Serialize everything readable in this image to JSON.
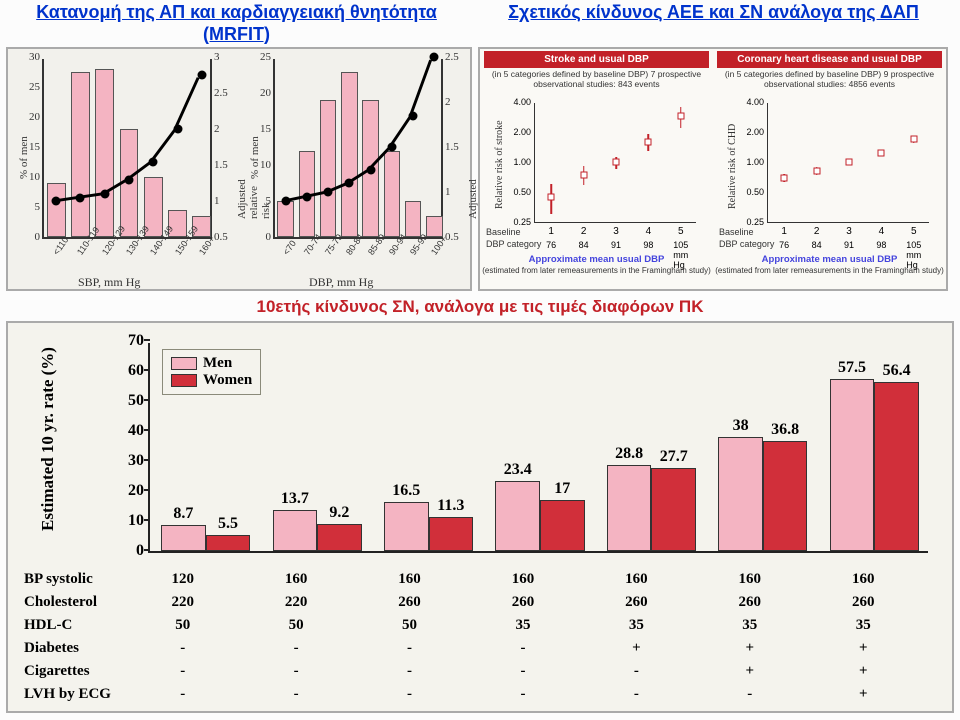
{
  "titles": {
    "left": "Κατανομή της ΑΠ και καρδιαγγειακή θνητότητα (MRFIT)",
    "right": "Σχετικός κίνδυνος ΑΕΕ και ΣΝ ανάλογα της ΔΑΠ"
  },
  "mrfit": {
    "background": "#f2f1ec",
    "bar_color": "#f4b4c2",
    "curve_color": "#000000",
    "y_left_label": "% of men",
    "y_right_label": "Adjusted relative risk",
    "sbp": {
      "xlabel": "SBP, mm Hg",
      "cats": [
        "<110",
        "110-119",
        "120-129",
        "130-139",
        "140-149",
        "150-159",
        "160+"
      ],
      "bars": [
        9,
        27.5,
        28,
        18,
        10,
        4.5,
        3.5
      ],
      "curve": [
        1.0,
        1.05,
        1.1,
        1.3,
        1.55,
        2.0,
        2.75
      ],
      "yl_ticks": [
        0,
        5,
        10,
        15,
        20,
        25,
        30
      ],
      "yr_ticks": [
        0.5,
        1,
        1.5,
        2,
        2.5,
        3
      ],
      "yl_max": 30,
      "yr_min": 0.5,
      "yr_max": 3
    },
    "dbp": {
      "xlabel": "DBP, mm Hg",
      "cats": [
        "<70",
        "70-74",
        "75-79",
        "80-84",
        "85-89",
        "90-94",
        "95-99",
        "100+"
      ],
      "bars": [
        5,
        12,
        19,
        23,
        19,
        12,
        5,
        3
      ],
      "curve": [
        0.9,
        0.95,
        1.0,
        1.1,
        1.25,
        1.5,
        1.85,
        2.5
      ],
      "yl_ticks": [
        0,
        5,
        10,
        15,
        20,
        25
      ],
      "yr_ticks": [
        0.5,
        1,
        1.5,
        2,
        2.5
      ],
      "yl_max": 25,
      "yr_min": 0.5,
      "yr_max": 2.5
    }
  },
  "rr": {
    "background": "#faf9f5",
    "marker_border": "#c22128",
    "y_ticks": [
      0.25,
      0.5,
      1.0,
      2.0,
      4.0
    ],
    "x_cats": [
      "1",
      "2",
      "3",
      "4",
      "5"
    ],
    "x_mmhg": [
      "76",
      "84",
      "91",
      "98",
      "105 mm Hg"
    ],
    "baseline_line1": "Baseline",
    "baseline_line2": "DBP category",
    "foot_title": "Approximate mean usual DBP",
    "foot_sub": "(estimated from later remeasurements in the Framingham study)",
    "stroke": {
      "title": "Stroke and usual DBP",
      "sub": "(in 5 categories defined by baseline DBP) 7 prospective observational studies: 843 events",
      "ylab": "Relative risk of stroke",
      "pts": [
        0.45,
        0.75,
        1.0,
        1.6,
        2.9
      ],
      "err": [
        0.15,
        0.16,
        0.14,
        0.3,
        0.7
      ]
    },
    "chd": {
      "title": "Coronary heart disease and usual DBP",
      "sub": "(in 5 categories defined by baseline DBP) 9 prospective observational studies: 4856 events",
      "ylab": "Relative risk of CHD",
      "pts": [
        0.7,
        0.82,
        1.0,
        1.25,
        1.7
      ],
      "err": [
        0.06,
        0.07,
        0.05,
        0.09,
        0.14
      ]
    }
  },
  "midtitle": "10ετής κίνδυνος ΣΝ, ανάλογα με τις τιμές διαφόρων ΠΚ",
  "tenyr": {
    "background": "#f4f3ed",
    "ylab": "Estimated 10 yr. rate (%)",
    "y_ticks": [
      0,
      10,
      20,
      30,
      40,
      50,
      60,
      70
    ],
    "y_max": 70,
    "legend": {
      "men": "Men",
      "women": "Women",
      "men_color": "#f4b4c2",
      "women_color": "#d12f3a"
    },
    "men": [
      8.7,
      13.7,
      16.5,
      23.4,
      28.8,
      38.0,
      57.5
    ],
    "women": [
      5.5,
      9.2,
      11.3,
      17.0,
      27.7,
      36.8,
      56.4
    ],
    "table": {
      "labels": [
        "BP systolic",
        "Cholesterol",
        "HDL-C",
        "Diabetes",
        "Cigarettes",
        "LVH by ECG"
      ],
      "rows": [
        [
          "120",
          "160",
          "160",
          "160",
          "160",
          "160",
          "160"
        ],
        [
          "220",
          "220",
          "260",
          "260",
          "260",
          "260",
          "260"
        ],
        [
          "50",
          "50",
          "50",
          "35",
          "35",
          "35",
          "35"
        ],
        [
          "-",
          "-",
          "-",
          "-",
          "+",
          "+",
          "+"
        ],
        [
          "-",
          "-",
          "-",
          "-",
          "-",
          "+",
          "+"
        ],
        [
          "-",
          "-",
          "-",
          "-",
          "-",
          "-",
          "+"
        ]
      ]
    }
  }
}
